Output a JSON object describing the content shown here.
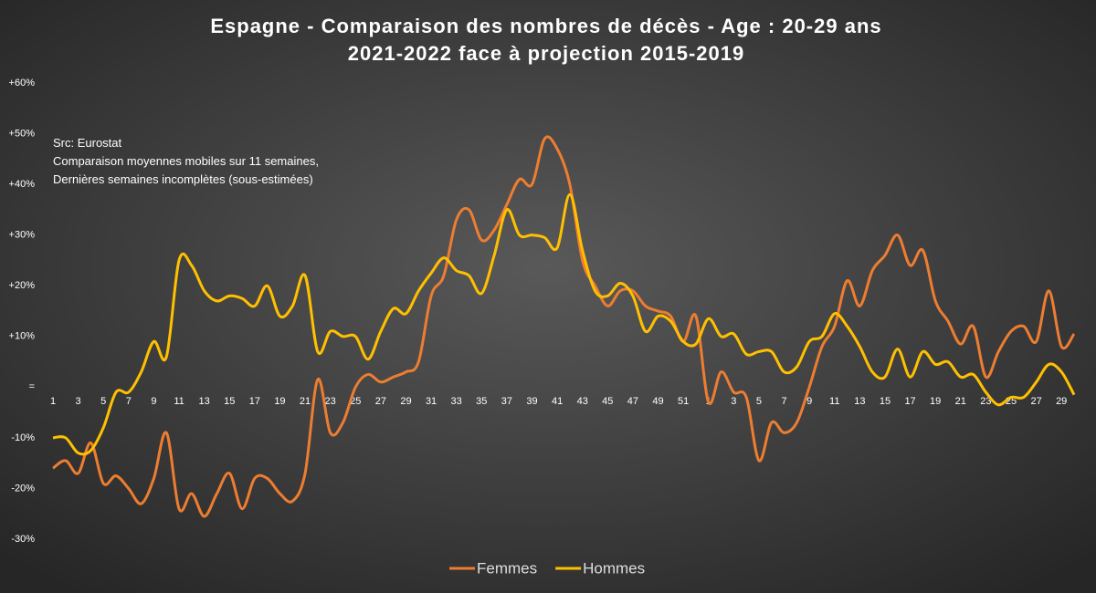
{
  "chart_data": {
    "type": "line",
    "title": "Espagne - Comparaison des nombres de décès - Age : 20-29 ans",
    "subtitle": "2021-2022 face à projection 2015-2019",
    "annotations": [
      "Src: Eurostat",
      "Comparaison moyennes mobiles sur 11 semaines,",
      "Dernières semaines incomplètes (sous-estimées)"
    ],
    "categories": [
      "1",
      null,
      "3",
      null,
      "5",
      null,
      "7",
      null,
      "9",
      null,
      "11",
      null,
      "13",
      null,
      "15",
      null,
      "17",
      null,
      "19",
      null,
      "21",
      null,
      "23",
      null,
      "25",
      null,
      "27",
      null,
      "29",
      null,
      "31",
      null,
      "33",
      null,
      "35",
      null,
      "37",
      null,
      "39",
      null,
      "41",
      null,
      "43",
      null,
      "45",
      null,
      "47",
      null,
      "49",
      null,
      "51",
      null,
      "1",
      null,
      "3",
      null,
      "5",
      null,
      "7",
      null,
      "9",
      null,
      "11",
      null,
      "13",
      null,
      "15",
      null,
      "17",
      null,
      "19",
      null,
      "21",
      null,
      "23",
      null,
      "25",
      null,
      "27",
      null,
      "29",
      null
    ],
    "series": [
      {
        "name": "Femmes",
        "color": "#ed7d31",
        "values": [
          -16,
          -14.5,
          -17,
          -11,
          -19,
          -17.5,
          -20,
          -23,
          -18,
          -9,
          -24,
          -21,
          -25.5,
          -21,
          -17,
          -24,
          -18,
          -18,
          -21,
          -22.5,
          -17,
          1.5,
          -9,
          -7,
          0,
          2.5,
          1,
          2,
          3,
          5,
          18,
          22,
          33,
          35,
          29,
          31,
          36,
          41,
          40,
          49,
          47,
          40,
          25,
          20,
          16,
          19,
          19,
          16,
          15,
          14,
          9,
          14,
          -3,
          3,
          -1,
          -2,
          -14.5,
          -7,
          -9,
          -7,
          0,
          8,
          12,
          21,
          16,
          23,
          26,
          30,
          24,
          27,
          17,
          13,
          8.5,
          12,
          2,
          7,
          11,
          12,
          9,
          19,
          8,
          10.5
        ]
      },
      {
        "name": "Hommes",
        "color": "#ffc000",
        "values": [
          -10,
          -10,
          -13,
          -12.5,
          -8,
          -1,
          -1,
          3,
          9,
          6,
          25,
          24,
          19,
          17,
          18,
          17.5,
          16,
          20,
          14,
          16,
          22,
          7,
          11,
          10,
          10,
          5.5,
          11,
          15.5,
          14.5,
          19,
          22.5,
          25.5,
          23,
          22,
          18.5,
          26,
          35,
          30,
          30,
          29.5,
          27.5,
          38,
          27,
          19,
          18,
          20.5,
          18,
          11,
          14,
          13,
          9,
          8.5,
          13.5,
          10,
          10.5,
          6.5,
          7,
          7,
          3,
          4,
          9,
          10,
          14.5,
          12,
          8,
          3,
          2,
          7.5,
          2,
          7,
          4.5,
          5,
          2,
          2.5,
          -1,
          -3.5,
          -2,
          -2,
          1,
          4.5,
          3,
          -1.5
        ]
      }
    ],
    "ylim": [
      -30,
      60
    ],
    "yticks": [
      {
        "value": -30,
        "label": "-30%"
      },
      {
        "value": -20,
        "label": "-20%"
      },
      {
        "value": -10,
        "label": "-10%"
      },
      {
        "value": 0,
        "label": "="
      },
      {
        "value": 10,
        "label": "+10%"
      },
      {
        "value": 20,
        "label": "+20%"
      },
      {
        "value": 30,
        "label": "+30%"
      },
      {
        "value": 40,
        "label": "+40%"
      },
      {
        "value": 50,
        "label": "+50%"
      },
      {
        "value": 60,
        "label": "+60%"
      }
    ],
    "grid": false,
    "legend": "bottom"
  }
}
